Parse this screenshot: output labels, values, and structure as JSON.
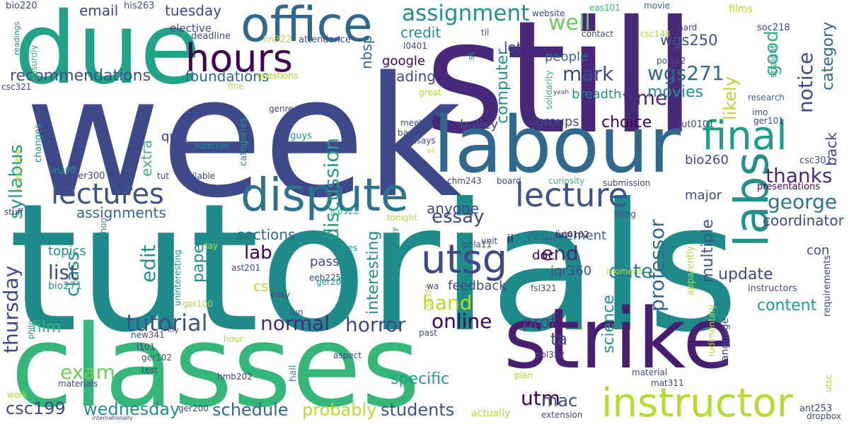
{
  "palette": {
    "dark_purple": "#440154",
    "purple": "#482878",
    "indigo": "#3e4989",
    "blue": "#31688e",
    "teal_blue": "#26828e",
    "teal": "#1f9e89",
    "green": "#35b779",
    "light_green": "#6ece58",
    "lime": "#b5de2b",
    "yellow": "#fde725"
  },
  "words": [
    {
      "text": "week",
      "color": "#3e4989"
    },
    {
      "text": "tutorials",
      "color": "#1f8a8a"
    },
    {
      "text": "still",
      "color": "#482878"
    },
    {
      "text": "classes",
      "color": "#35b779"
    },
    {
      "text": "due",
      "color": "#20a386"
    },
    {
      "text": "labour",
      "color": "#31688e"
    },
    {
      "text": "strike",
      "color": "#481f70"
    },
    {
      "text": "office",
      "color": "#31688e"
    },
    {
      "text": "hours",
      "color": "#440154"
    },
    {
      "text": "dispute",
      "color": "#2c728e"
    },
    {
      "text": "instructor",
      "color": "#b5de2b"
    },
    {
      "text": "lectures",
      "color": "#3b528b"
    },
    {
      "text": "lecture",
      "color": "#3b528b"
    },
    {
      "text": "final",
      "color": "#1f9e89"
    },
    {
      "text": "labs",
      "color": "#21918c"
    },
    {
      "text": "utsg",
      "color": "#3e4989"
    },
    {
      "text": "assignment",
      "color": "#21918c"
    },
    {
      "text": "well",
      "color": "#6ece58"
    },
    {
      "text": "mark",
      "color": "#3e4989"
    },
    {
      "text": "time",
      "color": "#482878"
    },
    {
      "text": "good",
      "color": "#35b779"
    },
    {
      "text": "notice",
      "color": "#3e4989"
    },
    {
      "text": "category",
      "color": "#31688e"
    },
    {
      "text": "likely",
      "color": "#b5de2b"
    },
    {
      "text": "wgs271",
      "color": "#31688e"
    },
    {
      "text": "wgs250",
      "color": "#3b528b"
    },
    {
      "text": "thanks",
      "color": "#482878"
    },
    {
      "text": "george",
      "color": "#2c728e"
    },
    {
      "text": "discussion",
      "color": "#1f9e89"
    },
    {
      "text": "syllabus",
      "color": "#1f9e89"
    },
    {
      "text": "tutorial",
      "color": "#3b528b"
    },
    {
      "text": "thursday",
      "color": "#3e4989"
    },
    {
      "text": "horror",
      "color": "#3e4989"
    },
    {
      "text": "normal",
      "color": "#482878"
    },
    {
      "text": "online",
      "color": "#440154"
    },
    {
      "text": "professor",
      "color": "#31688e"
    },
    {
      "text": "hand",
      "color": "#b5de2b"
    },
    {
      "text": "essay",
      "color": "#3e4989"
    },
    {
      "text": "date",
      "color": "#26828e"
    },
    {
      "text": "end",
      "color": "#482878"
    },
    {
      "text": "exam",
      "color": "#6ece58"
    },
    {
      "text": "class",
      "color": "#21918c"
    },
    {
      "text": "list",
      "color": "#3e4989"
    },
    {
      "text": "lab",
      "color": "#440154"
    },
    {
      "text": "edit",
      "color": "#21918c"
    },
    {
      "text": "utm",
      "color": "#440154"
    },
    {
      "text": "mac",
      "color": "#3b528b"
    },
    {
      "text": "students",
      "color": "#3b528b"
    },
    {
      "text": "probably",
      "color": "#b5de2b"
    },
    {
      "text": "schedule",
      "color": "#31688e"
    },
    {
      "text": "wednesday",
      "color": "#21918c"
    },
    {
      "text": "csc199",
      "color": "#3e4989"
    },
    {
      "text": "movies",
      "color": "#21918c"
    },
    {
      "text": "choice",
      "color": "#440154"
    },
    {
      "text": "recommendations",
      "color": "#3b528b"
    },
    {
      "text": "foundations",
      "color": "#31688e"
    },
    {
      "text": "email",
      "color": "#3e4989"
    },
    {
      "text": "tuesday",
      "color": "#3e4989"
    },
    {
      "text": "credit",
      "color": "#21918c"
    },
    {
      "text": "lot",
      "color": "#3e4989"
    },
    {
      "text": "computer",
      "color": "#21918c"
    },
    {
      "text": "reading",
      "color": "#3e4989"
    },
    {
      "text": "google",
      "color": "#440154"
    },
    {
      "text": "nbsp",
      "color": "#31688e"
    },
    {
      "text": "people",
      "color": "#31688e"
    },
    {
      "text": "breadth",
      "color": "#21918c"
    },
    {
      "text": "assignments",
      "color": "#31688e"
    },
    {
      "text": "sections",
      "color": "#31688e"
    },
    {
      "text": "anyone",
      "color": "#3e4989"
    },
    {
      "text": "paper",
      "color": "#21918c"
    },
    {
      "text": "update",
      "color": "#3e4989"
    },
    {
      "text": "multiple",
      "color": "#3b528b"
    },
    {
      "text": "coordinator",
      "color": "#3e4989"
    },
    {
      "text": "content",
      "color": "#1f9e89"
    },
    {
      "text": "back",
      "color": "#3e4989"
    },
    {
      "text": "film",
      "color": "#35b779"
    },
    {
      "text": "prof",
      "color": "#3e4989"
    },
    {
      "text": "ta",
      "color": "#3b528b"
    },
    {
      "text": "specific",
      "color": "#1f9e89"
    },
    {
      "text": "interesting",
      "color": "#21918c"
    },
    {
      "text": "science",
      "color": "#21918c"
    },
    {
      "text": "groups",
      "color": "#3e4989"
    },
    {
      "text": "bailey",
      "color": "#3e4989"
    },
    {
      "text": "quiz",
      "color": "#3e4989"
    },
    {
      "text": "extra",
      "color": "#35b779"
    },
    {
      "text": "requirement",
      "color": "#31688e"
    },
    {
      "text": "doc",
      "color": "#440154"
    },
    {
      "text": "cs",
      "color": "#b5de2b"
    },
    {
      "text": "topics",
      "color": "#21918c"
    },
    {
      "text": "feedback",
      "color": "#3e4989"
    },
    {
      "text": "pass",
      "color": "#3e4989"
    },
    {
      "text": "jqr360",
      "color": "#3b528b"
    },
    {
      "text": "major",
      "color": "#3e4989"
    },
    {
      "text": "bio260",
      "color": "#3e4989"
    },
    {
      "text": "con",
      "color": "#3e4989"
    },
    {
      "text": "presentations",
      "color": "#440154"
    },
    {
      "text": "bio220",
      "color": "#3e4989"
    },
    {
      "text": "his263",
      "color": "#3b528b"
    },
    {
      "text": "elective",
      "color": "#3e4989"
    },
    {
      "text": "deadline",
      "color": "#3e4989"
    },
    {
      "text": "lin322",
      "color": "#b5de2b"
    },
    {
      "text": "attendance",
      "color": "#3e4989"
    },
    {
      "text": "l0401",
      "color": "#3e4989"
    },
    {
      "text": "til",
      "color": "#3e4989"
    },
    {
      "text": "website",
      "color": "#3e4989"
    },
    {
      "text": "eas101",
      "color": "#35b779"
    },
    {
      "text": "movie",
      "color": "#31688e"
    },
    {
      "text": "hard",
      "color": "#3e4989"
    },
    {
      "text": "films",
      "color": "#b5de2b"
    },
    {
      "text": "soc218",
      "color": "#3e4989"
    },
    {
      "text": "contact",
      "color": "#3e4989"
    },
    {
      "text": "csc148",
      "color": "#b5de2b"
    },
    {
      "text": "pol112",
      "color": "#3e4989"
    },
    {
      "text": "research",
      "color": "#31688e"
    },
    {
      "text": "imo",
      "color": "#3e4989"
    },
    {
      "text": "ger101",
      "color": "#3e4989"
    },
    {
      "text": "tut0101",
      "color": "#3e4989"
    },
    {
      "text": "csc301",
      "color": "#3e4989"
    },
    {
      "text": "straight",
      "color": "#21918c"
    },
    {
      "text": "yeah",
      "color": "#3e4989"
    },
    {
      "text": "great",
      "color": "#b5de2b"
    },
    {
      "text": "solidarity",
      "color": "#35b779"
    },
    {
      "text": "meet",
      "color": "#3e4989"
    },
    {
      "text": "basis",
      "color": "#3e4989"
    },
    {
      "text": "essays",
      "color": "#3e4989"
    },
    {
      "text": "bit",
      "color": "#b5de2b"
    },
    {
      "text": "ss",
      "color": "#21918c"
    },
    {
      "text": "questions",
      "color": "#b5de2b"
    },
    {
      "text": "fine",
      "color": "#b5de2b"
    },
    {
      "text": "genre",
      "color": "#3e4989"
    },
    {
      "text": "categories",
      "color": "#21918c"
    },
    {
      "text": "guys",
      "color": "#21918c"
    },
    {
      "text": "ger310",
      "color": "#3e4989"
    },
    {
      "text": "summer",
      "color": "#21918c"
    },
    {
      "text": "csc321",
      "color": "#3e4989"
    },
    {
      "text": "readings",
      "color": "#21918c"
    },
    {
      "text": "absurdly",
      "color": "#35b779"
    },
    {
      "text": "changes",
      "color": "#21918c"
    },
    {
      "text": "impossible",
      "color": "#b5de2b"
    },
    {
      "text": "lin200",
      "color": "#21918c"
    },
    {
      "text": "ger300",
      "color": "#3e4989"
    },
    {
      "text": "tut",
      "color": "#3e4989"
    },
    {
      "text": "available",
      "color": "#3e4989"
    },
    {
      "text": "chm243",
      "color": "#3e4989"
    },
    {
      "text": "board",
      "color": "#3e4989"
    },
    {
      "text": "curiosity",
      "color": "#35b779"
    },
    {
      "text": "submission",
      "color": "#3e4989"
    },
    {
      "text": "jcp322",
      "color": "#35b779"
    },
    {
      "text": "tonight",
      "color": "#b5de2b"
    },
    {
      "text": "thing",
      "color": "#3e4989"
    },
    {
      "text": "unit",
      "color": "#3e4989"
    },
    {
      "text": "ii",
      "color": "#440154"
    },
    {
      "text": "tut0102",
      "color": "#440154"
    },
    {
      "text": "stuff",
      "color": "#3e4989"
    },
    {
      "text": "python",
      "color": "#21918c"
    },
    {
      "text": "phla11",
      "color": "#3e4989"
    },
    {
      "text": "bibliography",
      "color": "#21918c"
    },
    {
      "text": "day",
      "color": "#b5de2b"
    },
    {
      "text": "dates",
      "color": "#21918c"
    },
    {
      "text": "moment",
      "color": "#b5de2b"
    },
    {
      "text": "apparently",
      "color": "#b5de2b"
    },
    {
      "text": "ast201",
      "color": "#3e4989"
    },
    {
      "text": "eeb225",
      "color": "#3e4989"
    },
    {
      "text": "ger205",
      "color": "#21918c"
    },
    {
      "text": "uninteresting",
      "color": "#21918c"
    },
    {
      "text": "bio271",
      "color": "#21918c"
    },
    {
      "text": "philosophy",
      "color": "#21918c"
    },
    {
      "text": "iffy",
      "color": "#3e4989"
    },
    {
      "text": "ger100",
      "color": "#b5de2b"
    },
    {
      "text": "easy",
      "color": "#3e4989"
    },
    {
      "text": "csc358",
      "color": "#b5de2b"
    },
    {
      "text": "wa",
      "color": "#3e4989"
    },
    {
      "text": "fsl321",
      "color": "#3e4989"
    },
    {
      "text": "instructors",
      "color": "#3e4989"
    },
    {
      "text": "requirements",
      "color": "#3e4989"
    },
    {
      "text": "new341",
      "color": "#3e4989"
    },
    {
      "text": "fun",
      "color": "#3e4989"
    },
    {
      "text": "past",
      "color": "#3e4989"
    },
    {
      "text": "hour",
      "color": "#b5de2b"
    },
    {
      "text": "l101",
      "color": "#3e4989"
    },
    {
      "text": "ger102",
      "color": "#3e4989"
    },
    {
      "text": "aspect",
      "color": "#3e4989"
    },
    {
      "text": "rudimentary",
      "color": "#b5de2b"
    },
    {
      "text": "language",
      "color": "#3e4989"
    },
    {
      "text": "pol322",
      "color": "#3e4989"
    },
    {
      "text": "test",
      "color": "#3e4989"
    },
    {
      "text": "hall",
      "color": "#21918c"
    },
    {
      "text": "hmb202",
      "color": "#3e4989"
    },
    {
      "text": "material",
      "color": "#3e4989"
    },
    {
      "text": "mat311",
      "color": "#3e4989"
    },
    {
      "text": "utsc",
      "color": "#b5de2b"
    },
    {
      "text": "work",
      "color": "#b5de2b"
    },
    {
      "text": "materials",
      "color": "#3e4989"
    },
    {
      "text": "plan",
      "color": "#b5de2b"
    },
    {
      "text": "ger200",
      "color": "#3e4989"
    },
    {
      "text": "actually",
      "color": "#b5de2b"
    },
    {
      "text": "extension",
      "color": "#3e4989"
    },
    {
      "text": "ant253",
      "color": "#3e4989"
    },
    {
      "text": "dropbox",
      "color": "#3e4989"
    },
    {
      "text": "internationally",
      "color": "#3e4989"
    }
  ]
}
